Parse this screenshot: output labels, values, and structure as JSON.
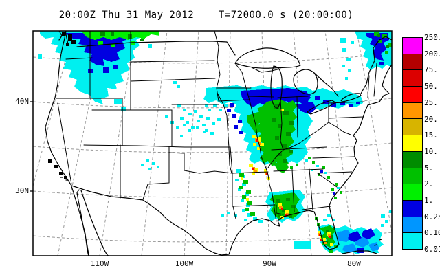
{
  "title": "20:00Z Thu 31 May 2012    T=72000.0 s (20:00:00)",
  "axes": {
    "lat": [
      "40N",
      "30N"
    ],
    "lon": [
      "110W",
      "100W",
      "90W",
      "80W"
    ]
  },
  "colorbar": {
    "labels": [
      "250.",
      "200.",
      "75.",
      "50.",
      "25.",
      "20.",
      "15.",
      "10.",
      "5.",
      "2.",
      "1.",
      "0.25",
      "0.10",
      "0.01"
    ],
    "colors": [
      "#ff00ff",
      "#b40000",
      "#dc0000",
      "#ff0000",
      "#ff9600",
      "#d7b400",
      "#ffff00",
      "#008c00",
      "#00c000",
      "#00f000",
      "#0000e1",
      "#0096ff",
      "#00f0f0"
    ]
  },
  "map": {
    "background": "#ffffff",
    "outline_color": "#000000",
    "grid_color": "#989898",
    "precip_colors": {
      "trace": "#00f0f0",
      "light": "#0096ff",
      "moderate": "#0000e1",
      "rain": "#00c000",
      "heavy": "#008c00",
      "intense": "#ffff00",
      "severe": "#ff9600",
      "extreme": "#ff0000",
      "top_band": "#00f000"
    }
  }
}
